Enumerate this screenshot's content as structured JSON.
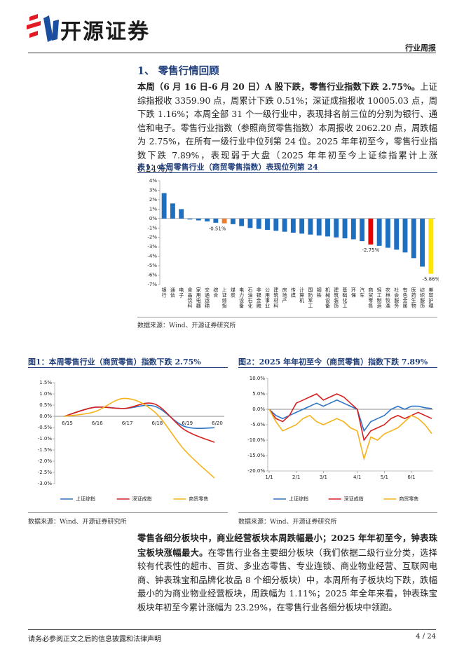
{
  "header": {
    "brand": "开源证券",
    "report_type": "行业周报"
  },
  "section_title": "1、 零售行情回顾",
  "paragraphs": [
    {
      "lead": "本周（6 月 16 日-6 月 20 日）A 股下跌，零售行业指数下跌 2.75%。",
      "body": "上证综指报收 3359.90 点，周累计下跌 0.51%；深证成指报收 10005.03 点，周下跌 1.16%；本周全部 31 个一级行业中，表现排名前三位的分别为银行、通信和电子。零售行业指数（参照商贸零售指数）本周报收 2062.20 点，周跌幅为 2.75%，在所有一级行业中位列第 24 位。2025 年年初至今，零售行业指数下跌 7.89%，表现弱于大盘（2025 年年初至今上证综指累计上涨 0.24%）。"
    },
    {
      "lead": "零售各细分板块中，商业经营板块本周跌幅最小；2025 年年初至今，钟表珠宝板块涨幅最大。",
      "body": "在零售行业各主要细分板块（我们依据二级行业分类，选择较有代表性的超市、百货、多业态零售、专业连锁、商业物业经营、互联网电商、钟表珠宝和品牌化妆品 8 个细分板块）中，本周所有子板块均下跌，跌幅最小的为商业物业经营板块，周跌幅为 1.11%；2025 年全年来看，钟表珠宝板块年初至今累计涨幅为 23.29%，在零售行业各细分板块中领跑。"
    }
  ],
  "chart_data": [
    {
      "type": "bar",
      "title": "表1：本周零售行业（商贸零售指数）表现位列第 24",
      "categories": [
        "银行",
        "通信",
        "电子",
        "食品饮料",
        "家用电器",
        "交通运输",
        "综合",
        "上证综指",
        "煤炭",
        "电力设备",
        "石油石化",
        "非银金融",
        "公用事业",
        "建筑材料",
        "房地产",
        "传媒",
        "计算机",
        "国防军工",
        "钢铁",
        "机械设备",
        "建筑装饰",
        "基础化工",
        "环保",
        "汽车",
        "商贸零售",
        "轻工制造",
        "农林牧渔",
        "社会服务",
        "有色金属",
        "医药生物",
        "纺织服饰",
        "美容护理"
      ],
      "values": [
        2.7,
        1.6,
        1.0,
        -0.1,
        -0.2,
        -0.3,
        -0.45,
        -0.51,
        -0.6,
        -0.8,
        -1.0,
        -1.1,
        -1.2,
        -1.3,
        -1.4,
        -1.5,
        -1.6,
        -1.7,
        -1.8,
        -1.9,
        -2.0,
        -2.1,
        -2.2,
        -2.4,
        -2.75,
        -2.9,
        -3.1,
        -3.3,
        -3.6,
        -4.2,
        -5.1,
        -5.86
      ],
      "value_labels": [
        null,
        null,
        null,
        null,
        null,
        null,
        null,
        "-0.51%",
        null,
        null,
        null,
        null,
        null,
        null,
        null,
        null,
        null,
        null,
        null,
        null,
        null,
        null,
        null,
        null,
        "-2.75%",
        null,
        null,
        null,
        null,
        null,
        null,
        "-5.86%"
      ],
      "colors": [
        "#1f6fc0",
        "#1f6fc0",
        "#1f6fc0",
        "#1f6fc0",
        "#1f6fc0",
        "#1f6fc0",
        "#1f6fc0",
        "#ed7d31",
        "#1f6fc0",
        "#1f6fc0",
        "#1f6fc0",
        "#1f6fc0",
        "#1f6fc0",
        "#1f6fc0",
        "#1f6fc0",
        "#1f6fc0",
        "#1f6fc0",
        "#1f6fc0",
        "#1f6fc0",
        "#1f6fc0",
        "#1f6fc0",
        "#1f6fc0",
        "#1f6fc0",
        "#1f6fc0",
        "#e60000",
        "#1f6fc0",
        "#1f6fc0",
        "#1f6fc0",
        "#1f6fc0",
        "#1f6fc0",
        "#1f6fc0",
        "#ffe600"
      ],
      "ylim": [
        -7,
        4
      ],
      "yticks": [
        {
          "value": 4,
          "label": "4%"
        },
        {
          "value": 3,
          "label": "3%"
        },
        {
          "value": 2,
          "label": "2%"
        },
        {
          "value": 1,
          "label": "1%"
        },
        {
          "value": 0,
          "label": "0%"
        },
        {
          "value": -1,
          "label": "-1%"
        },
        {
          "value": -2,
          "label": "-2%"
        },
        {
          "value": -3,
          "label": "-3%"
        },
        {
          "value": -4,
          "label": "-4%"
        },
        {
          "value": -5,
          "label": "-5%"
        },
        {
          "value": -6,
          "label": "-6%"
        },
        {
          "value": -7,
          "label": "-7%"
        }
      ],
      "source": "数据来源：Wind、开源证券研究所"
    },
    {
      "type": "line",
      "title": "图1：本周零售行业（商贸零售）指数下跌 2.75%",
      "smooth": true,
      "categories": [
        "6/15",
        "6/16",
        "6/17",
        "6/18",
        "6/19",
        "6/20"
      ],
      "series": [
        {
          "name": "上证综指",
          "color": "#2e75c5",
          "values": [
            0,
            0.4,
            0.35,
            0.45,
            -0.45,
            -0.51
          ]
        },
        {
          "name": "深证成指",
          "color": "#d62020",
          "values": [
            0,
            0.4,
            0.35,
            0.55,
            -0.6,
            -1.16
          ]
        },
        {
          "name": "商贸零售",
          "color": "#f5b21b",
          "values": [
            0,
            0.2,
            0.8,
            0.2,
            -1.5,
            -2.75
          ]
        }
      ],
      "ylim": [
        -3,
        1.5
      ],
      "yticks": [
        {
          "value": 1.5,
          "label": "1.5%"
        },
        {
          "value": 1,
          "label": "1.0%"
        },
        {
          "value": 0.5,
          "label": "0.5%"
        },
        {
          "value": 0,
          "label": "0.0%"
        },
        {
          "value": -0.5,
          "label": "-0.5%"
        },
        {
          "value": -1,
          "label": "-1.0%"
        },
        {
          "value": -1.5,
          "label": "-1.5%"
        },
        {
          "value": -2,
          "label": "-2.0%"
        },
        {
          "value": -2.5,
          "label": "-2.5%"
        },
        {
          "value": -3,
          "label": "-3.0%"
        }
      ],
      "source": "数据来源：Wind、开源证券研究所"
    },
    {
      "type": "line",
      "title": "图2：2025 年年初至今（商贸零售）指数下跌 7.89%",
      "smooth": false,
      "categories": [
        "1/1",
        null,
        null,
        null,
        "2/1",
        null,
        null,
        null,
        "3/1",
        null,
        null,
        null,
        null,
        "4/1",
        null,
        null,
        null,
        "5/1",
        null,
        null,
        null,
        "6/1",
        null,
        null,
        null
      ],
      "series": [
        {
          "name": "上证综指",
          "color": "#2e75c5",
          "values": [
            0,
            -2,
            -3,
            -2,
            -1,
            0,
            1,
            2,
            1,
            2,
            3,
            2,
            1,
            0,
            -7,
            -4,
            -3,
            -2,
            0,
            1,
            0,
            1,
            1,
            0.5,
            0.24
          ]
        },
        {
          "name": "深证成指",
          "color": "#d62020",
          "values": [
            0,
            -3,
            -4,
            -2,
            2,
            3,
            4,
            5,
            3,
            4,
            5,
            4,
            2,
            0,
            -10,
            -7,
            -6,
            -5,
            -3,
            -2,
            -3,
            -2,
            -1,
            -2,
            -3
          ]
        },
        {
          "name": "商贸零售",
          "color": "#f5b21b",
          "values": [
            0,
            -4,
            -7,
            -6,
            -5,
            -3,
            -2,
            -4,
            -5,
            -4,
            -3,
            -4,
            -6,
            -7,
            -16,
            -9,
            -10,
            -8,
            -7,
            -6,
            -4,
            -2,
            -3,
            -5,
            -7.89
          ]
        }
      ],
      "ylim": [
        -20,
        10
      ],
      "yticks": [
        {
          "value": 10,
          "label": "10.0%"
        },
        {
          "value": 5,
          "label": "5.0%"
        },
        {
          "value": 0,
          "label": "0.0%"
        },
        {
          "value": -5,
          "label": "-5.0%"
        },
        {
          "value": -10,
          "label": "-10.0%"
        },
        {
          "value": -15,
          "label": "-15.0%"
        },
        {
          "value": -20,
          "label": "-20.0%"
        }
      ],
      "source": "数据来源：Wind、开源证券研究所"
    }
  ],
  "footer": {
    "disclaimer": "请务必参阅正文之后的信息披露和法律声明",
    "page": "4 / 24"
  }
}
